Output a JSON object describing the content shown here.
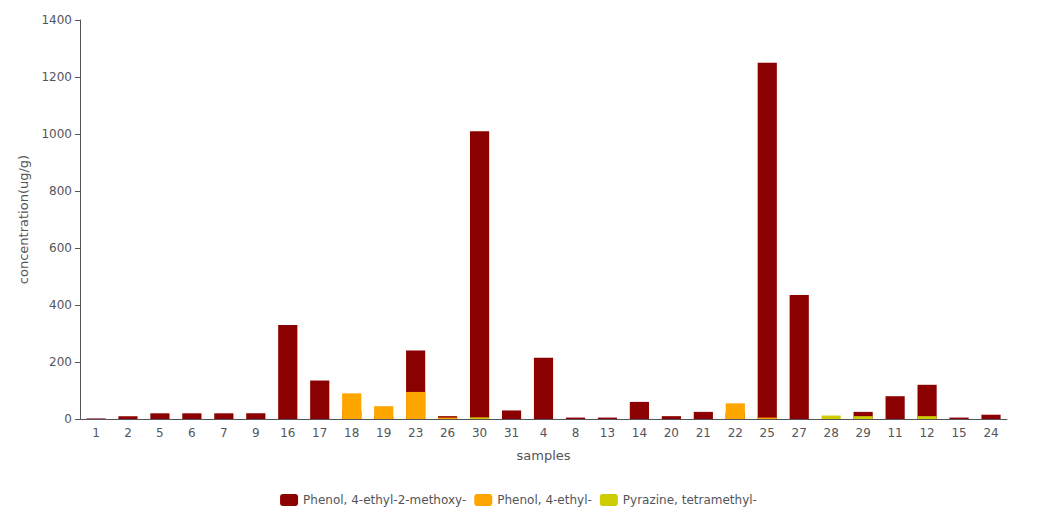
{
  "chart_data": {
    "type": "bar",
    "xlabel": "samples",
    "ylabel": "concentration(ug/g)",
    "categories": [
      "1",
      "2",
      "5",
      "6",
      "7",
      "9",
      "16",
      "17",
      "18",
      "19",
      "23",
      "26",
      "30",
      "31",
      "4",
      "8",
      "13",
      "14",
      "20",
      "21",
      "22",
      "25",
      "27",
      "28",
      "29",
      "11",
      "12",
      "15",
      "24"
    ],
    "series": [
      {
        "name": "Phenol, 4-ethyl-2-methoxy-",
        "color": "#8B0000",
        "values": [
          2,
          10,
          20,
          20,
          20,
          20,
          330,
          135,
          30,
          10,
          240,
          10,
          1010,
          30,
          215,
          5,
          5,
          60,
          10,
          25,
          22,
          1250,
          435,
          0,
          25,
          80,
          120,
          5,
          15
        ]
      },
      {
        "name": "Phenol, 4-ethyl-",
        "color": "#FFA500",
        "values": [
          0,
          0,
          0,
          0,
          0,
          0,
          0,
          0,
          90,
          45,
          95,
          5,
          5,
          0,
          0,
          0,
          0,
          0,
          0,
          0,
          55,
          5,
          0,
          0,
          0,
          0,
          0,
          0,
          0
        ]
      },
      {
        "name": "Pyrazine, tetramethyl-",
        "color": "#CCCC00",
        "values": [
          0,
          0,
          0,
          0,
          0,
          0,
          0,
          0,
          0,
          0,
          0,
          0,
          5,
          0,
          0,
          0,
          0,
          0,
          0,
          0,
          0,
          0,
          0,
          12,
          10,
          0,
          10,
          0,
          0
        ]
      }
    ],
    "ylim": [
      0,
      1400
    ],
    "yticks": [
      0,
      200,
      400,
      600,
      800,
      1000,
      1200,
      1400
    ],
    "grid": false,
    "legend": "bottom"
  }
}
